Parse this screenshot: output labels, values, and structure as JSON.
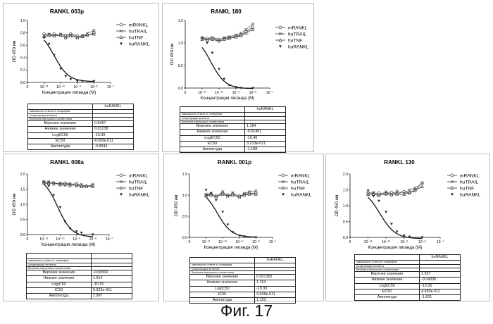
{
  "caption": "Фиг. 17",
  "chart_data": [
    {
      "type": "scatter",
      "title": "RANKL 003p",
      "xlabel": "Концентрация лиганда (M)",
      "ylabel": "OD 450 нм",
      "x_scale": "log",
      "xlim": [
        1e-12,
        1e-07
      ],
      "ylim": [
        0.0,
        1.0
      ],
      "yticks": [
        "0.0",
        "0.2",
        "0.4",
        "0.6",
        "0.8",
        "1.0"
      ],
      "xticks": [
        "0",
        "10⁻¹¹",
        "10⁻¹⁰",
        "10⁻⁹",
        "10⁻⁸",
        "10⁻⁷"
      ],
      "series": [
        {
          "name": "mRANKL",
          "marker": "circle",
          "x": [
            1e-11,
            2e-11,
            4e-11,
            1e-10,
            2e-10,
            4e-10,
            1e-09,
            2e-09,
            4e-09,
            1e-08
          ],
          "y": [
            0.78,
            0.77,
            0.78,
            0.77,
            0.76,
            0.78,
            0.75,
            0.74,
            0.76,
            0.8
          ]
        },
        {
          "name": "huTRAIL",
          "marker": "cross",
          "x": [
            1e-11,
            2e-11,
            4e-11,
            1e-10,
            2e-10,
            4e-10,
            1e-09,
            2e-09,
            4e-09,
            1e-08
          ],
          "y": [
            0.76,
            0.78,
            0.76,
            0.78,
            0.74,
            0.77,
            0.73,
            0.76,
            0.79,
            0.84
          ]
        },
        {
          "name": "huTNF",
          "marker": "triangle-up",
          "x": [
            1e-11,
            2e-11,
            4e-11,
            1e-10,
            2e-10,
            4e-10,
            1e-09,
            2e-09,
            4e-09,
            1e-08
          ],
          "y": [
            0.74,
            0.76,
            0.75,
            0.76,
            0.72,
            0.75,
            0.72,
            0.74,
            0.77,
            0.78
          ]
        },
        {
          "name": "huRANKL",
          "marker": "triangle-down",
          "x": [
            1e-11,
            2e-11,
            4e-11,
            1e-10,
            2e-10,
            4e-10,
            1e-09,
            2e-09,
            1e-08
          ],
          "y": [
            0.72,
            0.62,
            0.44,
            0.22,
            0.1,
            0.05,
            0.02,
            0.02,
            0.02
          ]
        }
      ],
      "fit": {
        "top": 0.8467,
        "bottom": 0.01238,
        "logec50": -10.39
      },
      "table": {
        "header": "huRANKL",
        "notes": [
          "зависимость ответа от логарифма",
          "концентрации агониста",
          "Величина наилучшего соответствия"
        ],
        "rows": [
          {
            "label": "Верхнее значение",
            "value": "0.8467"
          },
          {
            "label": "Нижнее значение",
            "value": "0.01238"
          },
          {
            "label": "LogEC50",
            "value": "-10.39"
          },
          {
            "label": "EC50",
            "value": "4.093e-011"
          },
          {
            "label": "Амплитуда",
            "value": "-0.8344"
          }
        ]
      }
    },
    {
      "type": "scatter",
      "title": "RANKL 180",
      "xlabel": "Концентрация лиганда (M)",
      "ylabel": "OD 450 нм",
      "x_scale": "log",
      "xlim": [
        1e-12,
        1e-07
      ],
      "ylim": [
        0.0,
        1.5
      ],
      "yticks": [
        "0.0",
        "0.5",
        "1.0",
        "1.5"
      ],
      "xticks": [
        "0",
        "10⁻¹¹",
        "10⁻¹⁰",
        "10⁻⁹",
        "10⁻⁸",
        "10⁻⁷"
      ],
      "series": [
        {
          "name": "mRANKL",
          "marker": "circle",
          "x": [
            1e-11,
            2e-11,
            4e-11,
            1e-10,
            2e-10,
            4e-10,
            1e-09,
            2e-09,
            4e-09,
            1e-08
          ],
          "y": [
            1.12,
            1.1,
            1.12,
            1.08,
            1.1,
            1.12,
            1.15,
            1.18,
            1.25,
            1.35
          ]
        },
        {
          "name": "huTRAIL",
          "marker": "cross",
          "x": [
            1e-11,
            2e-11,
            4e-11,
            1e-10,
            2e-10,
            4e-10,
            1e-09,
            2e-09,
            4e-09,
            1e-08
          ],
          "y": [
            1.1,
            1.08,
            1.1,
            1.06,
            1.12,
            1.14,
            1.18,
            1.22,
            1.3,
            1.42
          ]
        },
        {
          "name": "huTNF",
          "marker": "triangle-up",
          "x": [
            1e-11,
            2e-11,
            4e-11,
            1e-10,
            2e-10,
            4e-10,
            1e-09,
            2e-09,
            4e-09,
            1e-08
          ],
          "y": [
            1.08,
            1.06,
            1.08,
            1.04,
            1.08,
            1.1,
            1.13,
            1.16,
            1.22,
            1.3
          ]
        },
        {
          "name": "huRANKL",
          "marker": "triangle-down",
          "x": [
            1e-11,
            2e-11,
            4e-11,
            1e-10,
            2e-10,
            4e-10,
            1e-09,
            2e-09,
            1e-08
          ],
          "y": [
            1.1,
            1.0,
            0.78,
            0.42,
            0.2,
            0.06,
            0.02,
            0.0,
            0.0
          ]
        }
      ],
      "fit": {
        "top": 1.184,
        "bottom": -0.01451,
        "logec50": -10.49
      },
      "table": {
        "header": "huRANKL",
        "notes": [
          "зависимость ответа от логарифма",
          "концентрации агониста",
          "Величина наилучшего соответствия"
        ],
        "rows": [
          {
            "label": "Верхнее значение",
            "value": "1.184"
          },
          {
            "label": "Нижнее значение",
            "value": "-0.01451"
          },
          {
            "label": "LogEC50",
            "value": "-10.49"
          },
          {
            "label": "EC50",
            "value": "3.213e-011"
          },
          {
            "label": "Амплитуда",
            "value": "-1.198"
          }
        ]
      }
    },
    {
      "type": "scatter",
      "title": "RANKL 008a",
      "xlabel": "Концентрация лиганда (M)",
      "ylabel": "OD 450 нм",
      "x_scale": "log",
      "xlim": [
        1e-12,
        1e-07
      ],
      "ylim": [
        0.0,
        2.0
      ],
      "yticks": [
        "0.0",
        "0.5",
        "1.0",
        "1.5",
        "2.0"
      ],
      "xticks": [
        "0",
        "10⁻¹¹",
        "10⁻¹⁰",
        "10⁻⁹",
        "10⁻⁸",
        "10⁻⁷"
      ],
      "series": [
        {
          "name": "mRANKL",
          "marker": "circle",
          "x": [
            1e-11,
            2e-11,
            4e-11,
            1e-10,
            2e-10,
            4e-10,
            1e-09,
            2e-09,
            4e-09,
            1e-08
          ],
          "y": [
            1.75,
            1.72,
            1.7,
            1.68,
            1.7,
            1.66,
            1.68,
            1.62,
            1.6,
            1.62
          ]
        },
        {
          "name": "huTRAIL",
          "marker": "cross",
          "x": [
            1e-11,
            2e-11,
            4e-11,
            1e-10,
            2e-10,
            4e-10,
            1e-09,
            2e-09,
            4e-09,
            1e-08
          ],
          "y": [
            1.72,
            1.74,
            1.66,
            1.7,
            1.62,
            1.68,
            1.6,
            1.66,
            1.58,
            1.66
          ]
        },
        {
          "name": "huTNF",
          "marker": "triangle-up",
          "x": [
            1e-11,
            2e-11,
            4e-11,
            1e-10,
            2e-10,
            4e-10,
            1e-09,
            2e-09,
            4e-09,
            1e-08
          ],
          "y": [
            1.7,
            1.68,
            1.72,
            1.64,
            1.66,
            1.62,
            1.64,
            1.58,
            1.6,
            1.58
          ]
        },
        {
          "name": "huRANKL",
          "marker": "triangle-down",
          "x": [
            1e-11,
            2e-11,
            4e-11,
            1e-10,
            2e-10,
            4e-10,
            1e-09,
            2e-09,
            1e-08
          ],
          "y": [
            1.72,
            1.6,
            1.3,
            0.9,
            0.42,
            0.2,
            0.1,
            0.06,
            0.0
          ]
        }
      ],
      "fit": {
        "top": 1.914,
        "bottom": -0.08369,
        "logec50": -10.15
      },
      "table": {
        "header": "",
        "notes": [
          "зависимость ответа от логарифма",
          "концентрации антитела",
          "Величина наилучшего соответствия"
        ],
        "rows": [
          {
            "label": "Верхнее значение",
            "value": "-0.08369"
          },
          {
            "label": "Нижнее значение",
            "value": "1.914"
          },
          {
            "label": "LogIC50",
            "value": "-10.15"
          },
          {
            "label": "IC50",
            "value": "5.932e-011"
          },
          {
            "label": "Амплитуда",
            "value": "1.997"
          }
        ]
      }
    },
    {
      "type": "scatter",
      "title": "RANKL 001p",
      "xlabel": "Концентрация лиганда (M)",
      "ylabel": "OD 450 нм",
      "x_scale": "log",
      "xlim": [
        1e-12,
        1e-07
      ],
      "ylim": [
        0.0,
        1.5
      ],
      "yticks": [
        "0.0",
        "0.5",
        "1.0",
        "1.5"
      ],
      "xticks": [
        "0",
        "10⁻¹¹",
        "10⁻¹⁰",
        "10⁻⁹",
        "10⁻⁸",
        "10⁻⁷"
      ],
      "series": [
        {
          "name": "mRANKL",
          "marker": "circle",
          "x": [
            1e-11,
            2e-11,
            4e-11,
            1e-10,
            2e-10,
            4e-10,
            1e-09,
            2e-09,
            4e-09,
            1e-08
          ],
          "y": [
            1.0,
            1.02,
            0.98,
            1.05,
            1.0,
            1.03,
            0.98,
            1.02,
            1.04,
            1.05
          ]
        },
        {
          "name": "huTRAIL",
          "marker": "cross",
          "x": [
            1e-11,
            2e-11,
            4e-11,
            1e-10,
            2e-10,
            4e-10,
            1e-09,
            2e-09,
            4e-09,
            1e-08
          ],
          "y": [
            1.02,
            1.05,
            0.96,
            1.08,
            0.97,
            1.06,
            0.95,
            1.04,
            1.08,
            1.1
          ]
        },
        {
          "name": "huTNF",
          "marker": "triangle-up",
          "x": [
            1e-11,
            2e-11,
            4e-11,
            1e-10,
            2e-10,
            4e-10,
            1e-09,
            2e-09,
            4e-09,
            1e-08
          ],
          "y": [
            0.98,
            1.0,
            0.96,
            1.02,
            0.98,
            1.0,
            0.96,
            1.0,
            1.02,
            1.02
          ]
        },
        {
          "name": "huRANKL",
          "marker": "triangle-down",
          "x": [
            1e-11,
            2e-11,
            4e-11,
            1e-10,
            2e-10,
            4e-10,
            1e-09,
            2e-09,
            1e-08
          ],
          "y": [
            1.12,
            1.04,
            0.88,
            0.6,
            0.3,
            0.12,
            0.04,
            0.02,
            0.0
          ]
        }
      ],
      "fit": {
        "top": 1.154,
        "bottom": 0.001392,
        "logec50": -10.33
      },
      "table": {
        "header": "huRANKL",
        "notes": [
          "зависимость ответа от логарифма",
          "концентрации антитела",
          "Величина наилучшего соответствия"
        ],
        "rows": [
          {
            "label": "Верхнее значение",
            "value": "0.001392"
          },
          {
            "label": "Нижнее значение",
            "value": "1.154"
          },
          {
            "label": "LogIC50",
            "value": "-10.33"
          },
          {
            "label": "IC50",
            "value": "4.648e-011"
          },
          {
            "label": "Амплитуда",
            "value": "1.153"
          }
        ]
      }
    },
    {
      "type": "scatter",
      "title": "RANKL 130",
      "xlabel": "Концентрация лиганда (M)",
      "ylabel": "OD 450 нм",
      "x_scale": "log",
      "xlim": [
        1e-12,
        1e-07
      ],
      "ylim": [
        0.0,
        2.0
      ],
      "yticks": [
        "0.0",
        "0.5",
        "1.0",
        "1.5",
        "2.0"
      ],
      "xticks": [
        "0",
        "10⁻¹¹",
        "10⁻¹⁰",
        "10⁻⁹",
        "10⁻⁸",
        "10⁻⁷"
      ],
      "series": [
        {
          "name": "mRANKL",
          "marker": "circle",
          "x": [
            1e-11,
            2e-11,
            4e-11,
            1e-10,
            2e-10,
            4e-10,
            1e-09,
            2e-09,
            4e-09,
            1e-08
          ],
          "y": [
            1.42,
            1.38,
            1.4,
            1.36,
            1.42,
            1.38,
            1.44,
            1.4,
            1.48,
            1.72
          ]
        },
        {
          "name": "huTRAIL",
          "marker": "cross",
          "x": [
            1e-11,
            2e-11,
            4e-11,
            1e-10,
            2e-10,
            4e-10,
            1e-09,
            2e-09,
            4e-09,
            1e-08
          ],
          "y": [
            1.38,
            1.42,
            1.34,
            1.44,
            1.36,
            1.46,
            1.4,
            1.5,
            1.56,
            1.7
          ]
        },
        {
          "name": "huTNF",
          "marker": "triangle-up",
          "x": [
            1e-11,
            2e-11,
            4e-11,
            1e-10,
            2e-10,
            4e-10,
            1e-09,
            2e-09,
            4e-09,
            1e-08
          ],
          "y": [
            1.35,
            1.36,
            1.32,
            1.38,
            1.34,
            1.36,
            1.36,
            1.42,
            1.48,
            1.6
          ]
        },
        {
          "name": "huRANKL",
          "marker": "triangle-down",
          "x": [
            1e-11,
            2e-11,
            4e-11,
            1e-10,
            2e-10,
            4e-10,
            1e-09,
            2e-09,
            1e-08
          ],
          "y": [
            1.48,
            1.3,
            1.15,
            0.8,
            0.42,
            0.18,
            0.06,
            0.02,
            0.0
          ]
        }
      ],
      "fit": {
        "top": 1.557,
        "bottom": -0.04336,
        "logec50": -10.35
      },
      "table": {
        "header": "huRANKL",
        "notes": [
          "зависимость ответа от логарифма",
          "концентрации агониста",
          "Величина наилучшего соответствия"
        ],
        "rows": [
          {
            "label": "Верхнее значение",
            "value": "1.557"
          },
          {
            "label": "Нижнее значение",
            "value": "-0.04336"
          },
          {
            "label": "LogEC50",
            "value": "-10.35"
          },
          {
            "label": "EC50",
            "value": "4.450e-011"
          },
          {
            "label": "Амплитуда",
            "value": "-1.601"
          }
        ]
      }
    }
  ]
}
